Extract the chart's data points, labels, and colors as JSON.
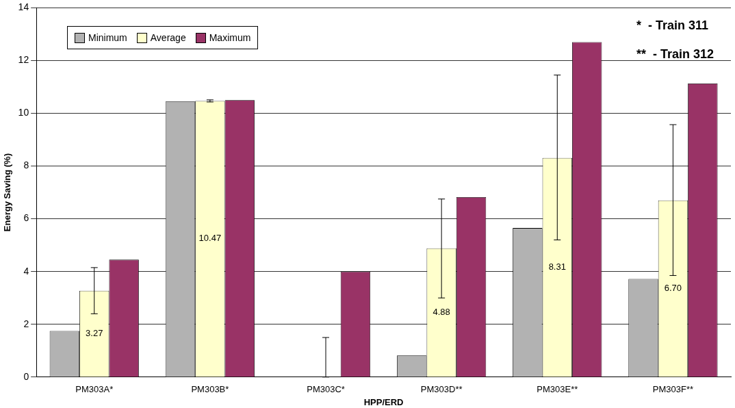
{
  "chart_data": {
    "type": "bar",
    "xlabel": "HPP/ERD",
    "ylabel": "Energy Saving (%)",
    "categories": [
      "PM303A*",
      "PM303B*",
      "PM303C*",
      "PM303D**",
      "PM303E**",
      "PM303F**"
    ],
    "series": [
      {
        "name": "Minimum",
        "color": "#b2b2b2",
        "values": [
          1.75,
          10.45,
          0,
          0.82,
          5.65,
          3.72
        ]
      },
      {
        "name": "Average",
        "color": "#ffffcc",
        "values": [
          3.27,
          10.47,
          0,
          4.88,
          8.31,
          6.7
        ],
        "errors": [
          [
            2.4,
            4.15
          ],
          [
            10.43,
            10.51
          ],
          [
            0,
            1.5
          ],
          [
            3.0,
            6.75
          ],
          [
            5.2,
            11.45
          ],
          [
            3.85,
            9.57
          ]
        ],
        "value_labels": [
          "3.27",
          "10.47",
          null,
          "4.88",
          "8.31",
          "6.70"
        ]
      },
      {
        "name": "Maximum",
        "color": "#993366",
        "values": [
          4.45,
          10.5,
          4.0,
          6.82,
          12.7,
          11.13
        ]
      }
    ],
    "ylim": [
      0,
      14
    ],
    "yticks": [
      0,
      2,
      4,
      6,
      8,
      10,
      12,
      14
    ],
    "grid": "y",
    "legend": "top left",
    "annotations": [
      "*  - Train 311",
      "**  - Train 312"
    ]
  }
}
